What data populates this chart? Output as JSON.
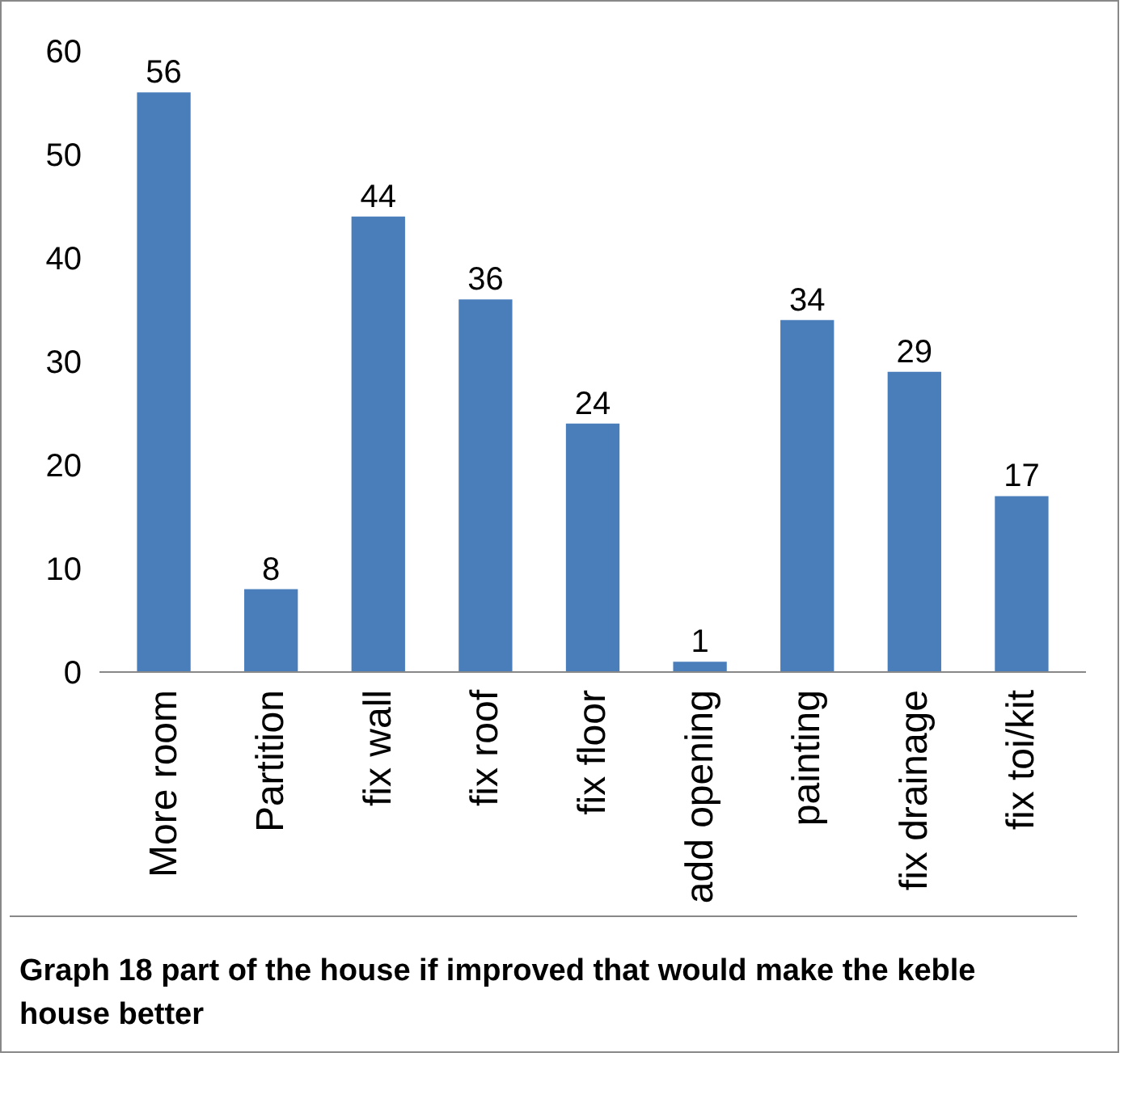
{
  "chart_data": {
    "type": "bar",
    "categories": [
      "More room",
      "Partition",
      "fix wall",
      "fix roof",
      "fix floor",
      "add opening",
      "painting",
      "fix drainage",
      "fix toi/kit"
    ],
    "values": [
      56,
      8,
      44,
      36,
      24,
      1,
      34,
      29,
      17
    ],
    "color": "#4a7ebb",
    "ylim": [
      0,
      60
    ],
    "yticks": [
      0,
      10,
      20,
      30,
      40,
      50,
      60
    ],
    "grid": false,
    "data_labels": true,
    "annotations": [
      "Graph 18 part of the house if improved that would make the keble house better"
    ]
  }
}
